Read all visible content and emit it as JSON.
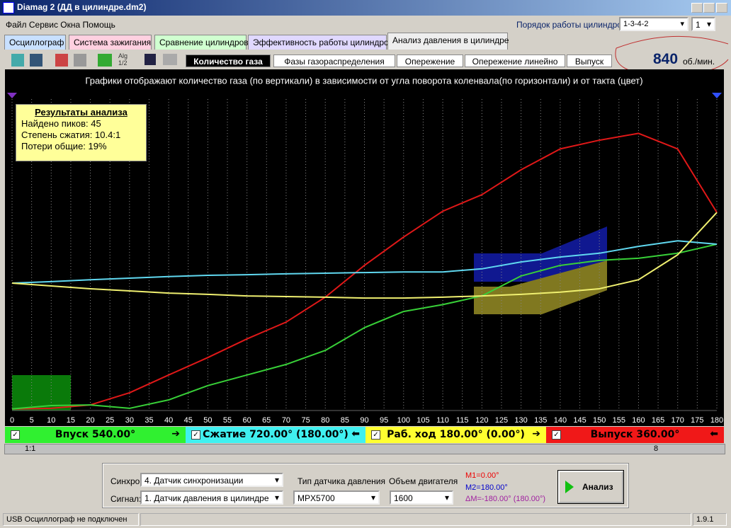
{
  "window": {
    "title": "Diamag 2 (ДД в цилиндре.dm2)"
  },
  "menu": [
    "Файл",
    "Сервис",
    "Окна",
    "Помощь"
  ],
  "cylinder_order": {
    "label": "Порядок работы цилиндров",
    "value": "1-3-4-2",
    "cylinder": "1"
  },
  "tabs": [
    "Осциллограф",
    "Система зажигания",
    "Сравнение цилиндров",
    "Эффективность работы цилиндров",
    "Анализ давления в цилиндре"
  ],
  "toolbar": {
    "icon_text": "Alg 1/2",
    "subtabs": [
      "Количество газа",
      "Фазы газораспределения",
      "Опережение",
      "Опережение линейно",
      "Выпуск"
    ],
    "rpm": "840",
    "rpm_unit": "об./мин."
  },
  "chart_data": {
    "type": "line",
    "title": "Графики отображают количество газа (по вертикали) в зависимости от угла поворота коленвала(по горизонтали) и от такта (цвет)",
    "x": [
      0,
      10,
      20,
      30,
      40,
      50,
      60,
      70,
      80,
      90,
      100,
      110,
      120,
      130,
      140,
      150,
      160,
      170,
      180
    ],
    "xlim": [
      0,
      180
    ],
    "xticks": [
      0,
      5,
      10,
      15,
      20,
      25,
      30,
      35,
      40,
      45,
      50,
      55,
      60,
      65,
      70,
      75,
      80,
      85,
      90,
      95,
      100,
      105,
      110,
      115,
      120,
      125,
      130,
      135,
      140,
      145,
      150,
      155,
      160,
      165,
      170,
      175,
      180
    ],
    "ylim": [
      0,
      100
    ],
    "grid": true,
    "series": [
      {
        "color": "#e01818",
        "values": [
          0.5,
          0.7,
          1.8,
          5.7,
          11.4,
          17,
          23,
          28.4,
          36.4,
          46.6,
          55.7,
          64,
          69.3,
          77.3,
          84,
          86.8,
          89,
          84,
          63.6
        ]
      },
      {
        "color": "#38d038",
        "values": [
          0.5,
          1.6,
          1.8,
          0.7,
          3.4,
          8,
          11.4,
          14.8,
          19.3,
          26.6,
          31.8,
          34,
          36.8,
          43.2,
          46.6,
          48.2,
          48.9,
          50.5,
          53.4
        ]
      },
      {
        "color": "#60d8f0",
        "values": [
          40.9,
          41.4,
          42,
          42.5,
          43,
          43.4,
          43.6,
          43.9,
          44.1,
          44.3,
          44.5,
          44.5,
          45.5,
          47.7,
          49.3,
          50.5,
          52.7,
          54.5,
          53.4
        ]
      },
      {
        "color": "#f0f070",
        "values": [
          40.9,
          40,
          39.1,
          38.4,
          37.7,
          37.3,
          36.8,
          36.6,
          36.4,
          36.1,
          36.1,
          36.4,
          36.8,
          37.3,
          38,
          39.1,
          42,
          50,
          63.6
        ]
      }
    ]
  },
  "results": {
    "title": "Результаты анализа",
    "lines": [
      "Найдено пиков: 45",
      "Степень сжатия: 10.4:1",
      "Потери общие: 19%"
    ]
  },
  "phases": [
    "Впуск 540.00°",
    "Сжатие 720.00° (180.00°)",
    "Раб. ход 180.00° (0.00°)",
    "Выпуск 360.00°"
  ],
  "scroll": {
    "zoom": "1:1",
    "page": "8"
  },
  "panel": {
    "sync_label": "Синхро:",
    "sync_value": "4.  Датчик синхронизации",
    "signal_label": "Сигнал:",
    "signal_value": "1.  Датчик давления в цилиндре",
    "sensor_label": "Тип датчика давления",
    "sensor_value": "MPX5700",
    "volume_label": "Объем двигателя",
    "volume_value": "1600",
    "m1": "M1=0.00°",
    "m2": "M2=180.00°",
    "dm": "ΔM=-180.00° (180.00°)",
    "button": "Анализ"
  },
  "status": {
    "message": "USB Осциллограф не подключен",
    "version": "1.9.1"
  }
}
